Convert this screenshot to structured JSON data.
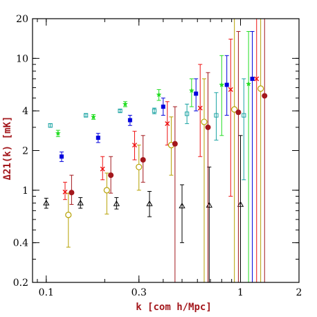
{
  "chart_data": {
    "type": "scatter",
    "title": "",
    "xlabel": "k [com h/Mpc]",
    "ylabel": "Δ21(k) [mK]",
    "xscale": "log",
    "yscale": "log",
    "xlim": [
      0.085,
      2.0
    ],
    "ylim": [
      0.2,
      20
    ],
    "grid": false,
    "legend": "none",
    "xticks": [
      0.1,
      0.3,
      1,
      2
    ],
    "xtick_labels": [
      "0.1",
      "0.3",
      "1",
      "2"
    ],
    "yticks": [
      0.2,
      0.4,
      1,
      2,
      4,
      10,
      20
    ],
    "ytick_labels": [
      "0.2",
      "0.4",
      "1",
      "2",
      "4",
      "10",
      "20"
    ],
    "series": [
      {
        "marker": "open-triangle",
        "color": "#000000",
        "points": [
          {
            "x": 0.1,
            "y": 0.8,
            "lo": 0.73,
            "hi": 0.87
          },
          {
            "x": 0.15,
            "y": 0.8,
            "lo": 0.73,
            "hi": 0.88
          },
          {
            "x": 0.23,
            "y": 0.79,
            "lo": 0.72,
            "hi": 0.88
          },
          {
            "x": 0.34,
            "y": 0.79,
            "lo": 0.63,
            "hi": 0.98
          },
          {
            "x": 0.5,
            "y": 0.76,
            "lo": 0.4,
            "hi": 1.1
          },
          {
            "x": 0.69,
            "y": 0.77,
            "lo": 0.2,
            "hi": 1.5
          },
          {
            "x": 1.0,
            "y": 0.78,
            "lo": 0.2,
            "hi": 2.6
          }
        ]
      },
      {
        "marker": "open-square",
        "color": "#1aa3a3",
        "points": [
          {
            "x": 0.105,
            "y": 3.1,
            "lo": 3.0,
            "hi": 3.2
          },
          {
            "x": 0.16,
            "y": 3.7,
            "lo": 3.6,
            "hi": 3.8
          },
          {
            "x": 0.24,
            "y": 4.0,
            "lo": 3.9,
            "hi": 4.1
          },
          {
            "x": 0.36,
            "y": 4.0,
            "lo": 3.8,
            "hi": 4.2
          },
          {
            "x": 0.53,
            "y": 3.8,
            "lo": 3.2,
            "hi": 4.5
          },
          {
            "x": 0.75,
            "y": 3.7,
            "lo": 2.4,
            "hi": 5.5
          },
          {
            "x": 1.04,
            "y": 3.7,
            "lo": 1.2,
            "hi": 7.0
          }
        ]
      },
      {
        "marker": "filled-star",
        "color": "#22dd22",
        "points": [
          {
            "x": 0.115,
            "y": 2.7,
            "lo": 2.55,
            "hi": 2.85
          },
          {
            "x": 0.175,
            "y": 3.6,
            "lo": 3.45,
            "hi": 3.75
          },
          {
            "x": 0.255,
            "y": 4.5,
            "lo": 4.3,
            "hi": 4.7
          },
          {
            "x": 0.38,
            "y": 5.3,
            "lo": 4.8,
            "hi": 5.8
          },
          {
            "x": 0.56,
            "y": 5.7,
            "lo": 4.3,
            "hi": 7.0
          },
          {
            "x": 0.8,
            "y": 6.3,
            "lo": 2.6,
            "hi": 10.5
          },
          {
            "x": 1.1,
            "y": 6.4,
            "lo": 0.2,
            "hi": 16.0
          }
        ]
      },
      {
        "marker": "filled-square",
        "color": "#0000dd",
        "points": [
          {
            "x": 0.12,
            "y": 1.8,
            "lo": 1.65,
            "hi": 1.95
          },
          {
            "x": 0.185,
            "y": 2.5,
            "lo": 2.3,
            "hi": 2.7
          },
          {
            "x": 0.27,
            "y": 3.4,
            "lo": 3.1,
            "hi": 3.7
          },
          {
            "x": 0.4,
            "y": 4.3,
            "lo": 3.7,
            "hi": 5.0
          },
          {
            "x": 0.59,
            "y": 5.4,
            "lo": 4.0,
            "hi": 7.0
          },
          {
            "x": 0.85,
            "y": 6.3,
            "lo": 3.7,
            "hi": 10.5
          },
          {
            "x": 1.15,
            "y": 7.0,
            "lo": 0.2,
            "hi": 16.0
          }
        ]
      },
      {
        "marker": "cross",
        "color": "#ee1111",
        "points": [
          {
            "x": 0.125,
            "y": 0.97,
            "lo": 0.85,
            "hi": 1.15
          },
          {
            "x": 0.195,
            "y": 1.45,
            "lo": 1.2,
            "hi": 1.8
          },
          {
            "x": 0.285,
            "y": 2.2,
            "lo": 1.7,
            "hi": 2.8
          },
          {
            "x": 0.42,
            "y": 3.2,
            "lo": 2.2,
            "hi": 4.7
          },
          {
            "x": 0.62,
            "y": 4.2,
            "lo": 1.8,
            "hi": 9.0
          },
          {
            "x": 0.89,
            "y": 5.8,
            "lo": 0.9,
            "hi": 14.0
          },
          {
            "x": 1.21,
            "y": 7.0,
            "lo": 0.2,
            "hi": 20.0
          }
        ]
      },
      {
        "marker": "open-circle",
        "color": "#b5a000",
        "points": [
          {
            "x": 0.13,
            "y": 0.65,
            "lo": 0.37,
            "hi": 0.95
          },
          {
            "x": 0.205,
            "y": 1.0,
            "lo": 0.66,
            "hi": 1.35
          },
          {
            "x": 0.3,
            "y": 1.5,
            "lo": 1.0,
            "hi": 2.2
          },
          {
            "x": 0.44,
            "y": 2.2,
            "lo": 1.3,
            "hi": 3.6
          },
          {
            "x": 0.65,
            "y": 3.3,
            "lo": 0.2,
            "hi": 7.0
          },
          {
            "x": 0.93,
            "y": 4.1,
            "lo": 0.2,
            "hi": 20.0
          },
          {
            "x": 1.27,
            "y": 5.9,
            "lo": 0.2,
            "hi": 20.0
          }
        ]
      },
      {
        "marker": "filled-circle",
        "color": "#a3171c",
        "points": [
          {
            "x": 0.135,
            "y": 0.96,
            "lo": 0.78,
            "hi": 1.3
          },
          {
            "x": 0.215,
            "y": 1.3,
            "lo": 0.95,
            "hi": 1.8
          },
          {
            "x": 0.315,
            "y": 1.7,
            "lo": 1.15,
            "hi": 2.6
          },
          {
            "x": 0.46,
            "y": 2.25,
            "lo": 0.2,
            "hi": 4.3
          },
          {
            "x": 0.68,
            "y": 3.0,
            "lo": 0.2,
            "hi": 7.8
          },
          {
            "x": 0.975,
            "y": 3.9,
            "lo": 0.2,
            "hi": 16.0
          },
          {
            "x": 1.33,
            "y": 5.2,
            "lo": 0.2,
            "hi": 20.0
          }
        ]
      }
    ]
  }
}
